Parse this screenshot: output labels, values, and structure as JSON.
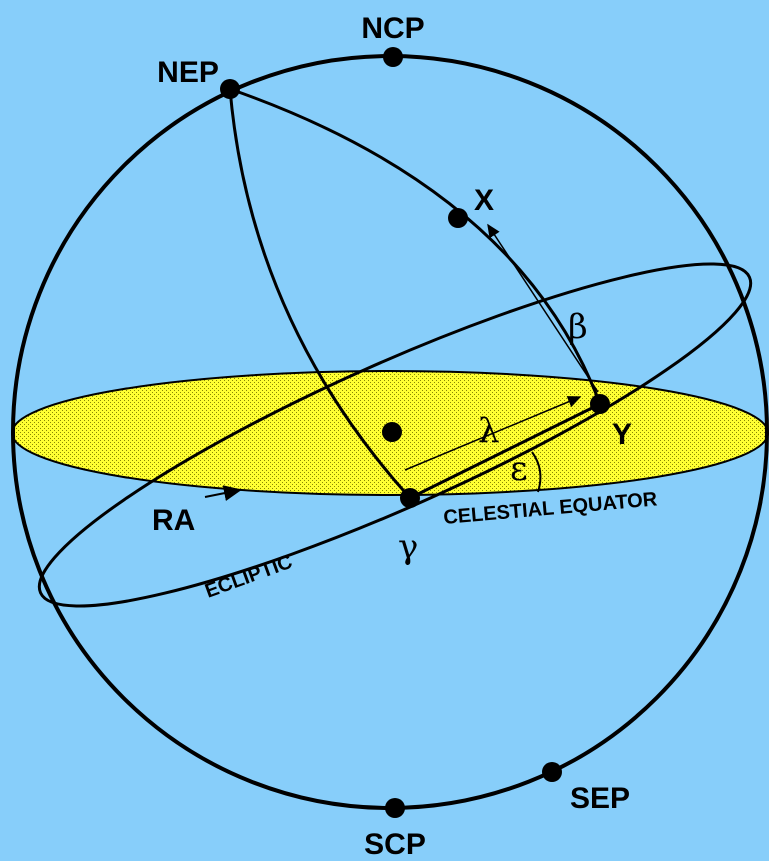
{
  "labels": {
    "ncp": "NCP",
    "nep": "NEP",
    "x": "X",
    "beta": "β",
    "y": "Y",
    "lambda": "λ",
    "epsilon": "ε",
    "ra": "RA",
    "gamma": "γ",
    "celestial_equator": "CELESTIAL EQUATOR",
    "ecliptic": "ECLIPTIC",
    "sep": "SEP",
    "scp": "SCP"
  }
}
